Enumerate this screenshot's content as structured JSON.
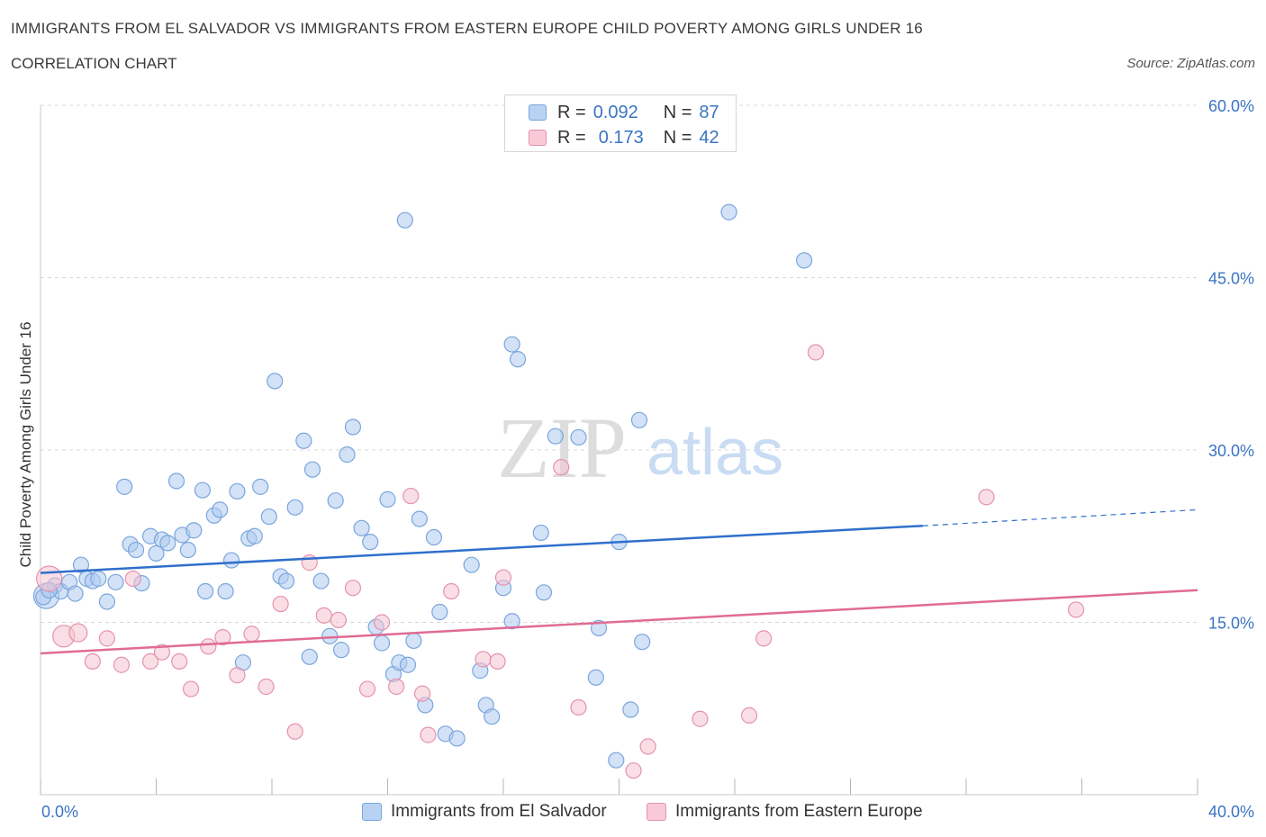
{
  "title": "IMMIGRANTS FROM EL SALVADOR VS IMMIGRANTS FROM EASTERN EUROPE CHILD POVERTY AMONG GIRLS UNDER 16",
  "subtitle": "CORRELATION CHART",
  "source": "Source: ZipAtlas.com",
  "watermark": {
    "zip": "ZIP",
    "atlas": "atlas"
  },
  "legend": {
    "rows": [
      {
        "r_label": "R =",
        "r_value": "0.092",
        "n_label": "N =",
        "n_value": "87"
      },
      {
        "r_label": "R =",
        "r_value": "0.173",
        "n_label": "N =",
        "n_value": "42"
      }
    ]
  },
  "bottom_legend": {
    "series1": "Immigrants from El Salvador",
    "series2": "Immigrants from Eastern Europe"
  },
  "colors": {
    "blue_fill": "#aecbf0",
    "blue_stroke": "#7aa6dc",
    "blue_line": "#2f6fcc",
    "pink_fill": "#f6c2d2",
    "pink_stroke": "#e493ad",
    "pink_line": "#e06b94",
    "tick_label": "#3a74c4",
    "grid": "#d9d9d9"
  },
  "chart_data": {
    "type": "scatter",
    "ylabel": "Child Poverty Among Girls Under 16",
    "xlim": [
      0,
      40
    ],
    "ylim": [
      0,
      60
    ],
    "x_tick_labels": [
      "0.0%",
      "40.0%"
    ],
    "y_ticks": [
      15,
      30,
      45,
      60
    ],
    "y_tick_labels": [
      "15.0%",
      "30.0%",
      "45.0%",
      "60.0%"
    ],
    "grid": "horizontal dashed",
    "legend_position": "top-center",
    "series": [
      {
        "name": "Immigrants from El Salvador",
        "r": 0.092,
        "n": 87,
        "trend": {
          "x": [
            0,
            30.5
          ],
          "y": [
            19.3,
            23.4
          ],
          "extension_x": [
            30.5,
            40
          ],
          "extension_y": [
            23.4,
            24.8
          ]
        },
        "points": [
          [
            0.2,
            17.3
          ],
          [
            0.5,
            18.2
          ],
          [
            0.7,
            17.7
          ],
          [
            1.0,
            18.5
          ],
          [
            1.2,
            17.5
          ],
          [
            1.4,
            20.0
          ],
          [
            1.6,
            18.8
          ],
          [
            1.8,
            18.6
          ],
          [
            2.0,
            18.8
          ],
          [
            2.3,
            16.8
          ],
          [
            2.6,
            18.5
          ],
          [
            2.9,
            26.8
          ],
          [
            3.1,
            21.8
          ],
          [
            3.3,
            21.3
          ],
          [
            3.5,
            18.4
          ],
          [
            3.8,
            22.5
          ],
          [
            4.0,
            21.0
          ],
          [
            4.2,
            22.2
          ],
          [
            4.4,
            21.9
          ],
          [
            4.7,
            27.3
          ],
          [
            4.9,
            22.6
          ],
          [
            5.1,
            21.3
          ],
          [
            5.3,
            23.0
          ],
          [
            5.6,
            26.5
          ],
          [
            5.7,
            17.7
          ],
          [
            6.0,
            24.3
          ],
          [
            6.2,
            24.8
          ],
          [
            6.4,
            17.7
          ],
          [
            6.6,
            20.4
          ],
          [
            6.8,
            26.4
          ],
          [
            7.0,
            11.5
          ],
          [
            7.2,
            22.3
          ],
          [
            7.4,
            22.5
          ],
          [
            7.6,
            26.8
          ],
          [
            7.9,
            24.2
          ],
          [
            8.1,
            36.0
          ],
          [
            8.3,
            19.0
          ],
          [
            8.5,
            18.6
          ],
          [
            8.8,
            25.0
          ],
          [
            9.1,
            30.8
          ],
          [
            9.3,
            12.0
          ],
          [
            9.4,
            28.3
          ],
          [
            9.7,
            18.6
          ],
          [
            10.0,
            13.8
          ],
          [
            10.2,
            25.6
          ],
          [
            10.4,
            12.6
          ],
          [
            10.6,
            29.6
          ],
          [
            10.8,
            32.0
          ],
          [
            11.1,
            23.2
          ],
          [
            11.4,
            22.0
          ],
          [
            11.6,
            14.6
          ],
          [
            11.8,
            13.2
          ],
          [
            12.0,
            25.7
          ],
          [
            12.2,
            10.5
          ],
          [
            12.4,
            11.5
          ],
          [
            12.7,
            11.3
          ],
          [
            12.6,
            50.0
          ],
          [
            12.9,
            13.4
          ],
          [
            13.1,
            24.0
          ],
          [
            13.3,
            7.8
          ],
          [
            13.6,
            22.4
          ],
          [
            13.8,
            15.9
          ],
          [
            14.0,
            5.3
          ],
          [
            14.4,
            4.9
          ],
          [
            14.9,
            20.0
          ],
          [
            15.2,
            10.8
          ],
          [
            15.4,
            7.8
          ],
          [
            15.6,
            6.8
          ],
          [
            16.0,
            18.0
          ],
          [
            16.3,
            15.1
          ],
          [
            16.3,
            39.2
          ],
          [
            16.5,
            37.9
          ],
          [
            17.3,
            22.8
          ],
          [
            17.4,
            17.6
          ],
          [
            17.8,
            31.2
          ],
          [
            18.6,
            31.1
          ],
          [
            19.2,
            10.2
          ],
          [
            19.3,
            14.5
          ],
          [
            19.9,
            3.0
          ],
          [
            20.0,
            22.0
          ],
          [
            20.4,
            7.4
          ],
          [
            20.7,
            32.6
          ],
          [
            20.8,
            13.3
          ],
          [
            23.8,
            50.7
          ],
          [
            26.4,
            46.5
          ],
          [
            0.1,
            17.2
          ],
          [
            0.3,
            17.8
          ]
        ]
      },
      {
        "name": "Immigrants from Eastern Europe",
        "r": 0.173,
        "n": 42,
        "trend": {
          "x": [
            0,
            40
          ],
          "y": [
            12.3,
            17.8
          ]
        },
        "points": [
          [
            0.3,
            18.8
          ],
          [
            0.8,
            13.8
          ],
          [
            1.3,
            14.1
          ],
          [
            1.8,
            11.6
          ],
          [
            2.3,
            13.6
          ],
          [
            2.8,
            11.3
          ],
          [
            3.2,
            18.8
          ],
          [
            3.8,
            11.6
          ],
          [
            4.2,
            12.4
          ],
          [
            4.8,
            11.6
          ],
          [
            5.2,
            9.2
          ],
          [
            5.8,
            12.9
          ],
          [
            6.3,
            13.7
          ],
          [
            6.8,
            10.4
          ],
          [
            7.3,
            14.0
          ],
          [
            7.8,
            9.4
          ],
          [
            8.3,
            16.6
          ],
          [
            8.8,
            5.5
          ],
          [
            9.3,
            20.2
          ],
          [
            9.8,
            15.6
          ],
          [
            10.3,
            15.2
          ],
          [
            10.8,
            18.0
          ],
          [
            11.3,
            9.2
          ],
          [
            11.8,
            15.0
          ],
          [
            12.3,
            9.4
          ],
          [
            12.8,
            26.0
          ],
          [
            13.2,
            8.8
          ],
          [
            13.4,
            5.2
          ],
          [
            14.2,
            17.7
          ],
          [
            15.3,
            11.8
          ],
          [
            15.8,
            11.6
          ],
          [
            16.0,
            18.9
          ],
          [
            18.0,
            28.5
          ],
          [
            18.6,
            7.6
          ],
          [
            20.5,
            2.1
          ],
          [
            21.0,
            4.2
          ],
          [
            22.8,
            6.6
          ],
          [
            24.5,
            6.9
          ],
          [
            25.0,
            13.6
          ],
          [
            26.8,
            38.5
          ],
          [
            32.7,
            25.9
          ],
          [
            35.8,
            16.1
          ]
        ]
      }
    ]
  }
}
